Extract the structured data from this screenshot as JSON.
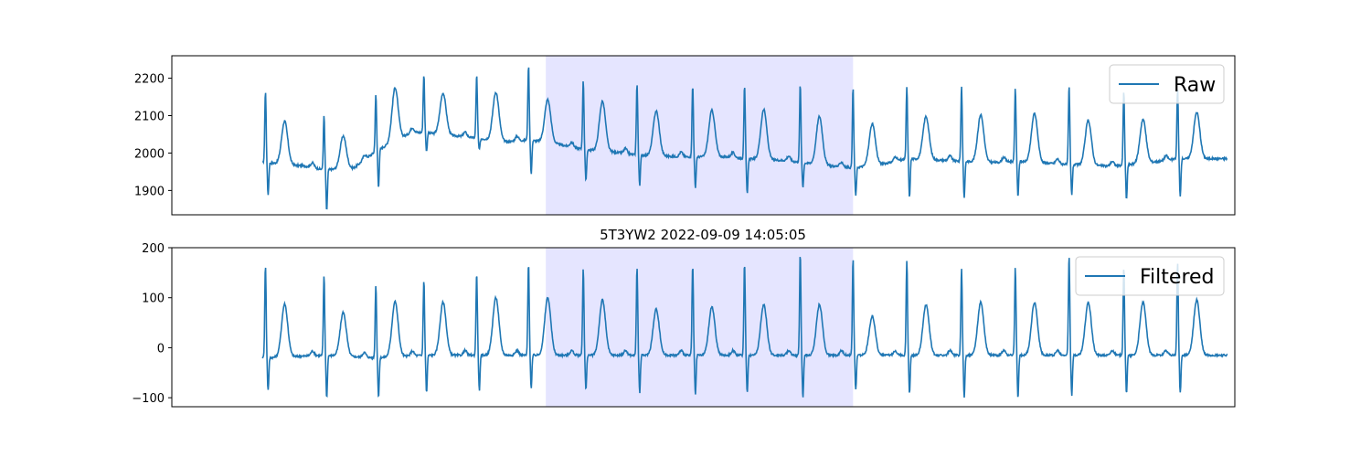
{
  "figure": {
    "title": "5T3YW2 2022-09-09 14:05:05"
  },
  "colors": {
    "line": "#1f77b4",
    "highlight": "#e5e5ff",
    "axes": "#000000"
  },
  "chart_data": [
    {
      "type": "line",
      "name": "raw-panel",
      "legend": "Raw",
      "legend_position": "upper-right",
      "grid": false,
      "xlim": [
        0,
        10
      ],
      "ylim": [
        1835,
        2260
      ],
      "yticks": [
        1900,
        2000,
        2100,
        2200
      ],
      "ytick_labels": [
        "1900",
        "2000",
        "2100",
        "2200"
      ],
      "highlight_x": [
        3.4,
        6.6
      ],
      "series": [
        {
          "name": "Raw",
          "peaks": [
            {
              "x": 0.48,
              "r": 2165,
              "s": 1890,
              "t": 2100
            },
            {
              "x": 1.09,
              "r": 2100,
              "s": 1845,
              "t": 2050
            },
            {
              "x": 1.63,
              "r": 2155,
              "s": 1905,
              "t": 2160
            },
            {
              "x": 2.13,
              "r": 2210,
              "s": 2005,
              "t": 2175
            },
            {
              "x": 2.68,
              "r": 2210,
              "s": 2010,
              "t": 2180
            },
            {
              "x": 3.22,
              "r": 2235,
              "s": 1945,
              "t": 2160
            },
            {
              "x": 3.79,
              "r": 2195,
              "s": 1925,
              "t": 2155
            },
            {
              "x": 4.35,
              "r": 2185,
              "s": 1915,
              "t": 2125
            },
            {
              "x": 4.93,
              "r": 2180,
              "s": 1905,
              "t": 2125
            },
            {
              "x": 5.47,
              "r": 2180,
              "s": 1890,
              "t": 2130
            },
            {
              "x": 6.05,
              "r": 2185,
              "s": 1910,
              "t": 2115
            },
            {
              "x": 6.6,
              "r": 2175,
              "s": 1885,
              "t": 2080
            },
            {
              "x": 7.16,
              "r": 2175,
              "s": 1880,
              "t": 2110
            },
            {
              "x": 7.73,
              "r": 2180,
              "s": 1880,
              "t": 2115
            },
            {
              "x": 8.29,
              "r": 2175,
              "s": 1885,
              "t": 2120
            },
            {
              "x": 8.85,
              "r": 2180,
              "s": 1890,
              "t": 2100
            },
            {
              "x": 9.42,
              "r": 2165,
              "s": 1875,
              "t": 2095
            },
            {
              "x": 9.98,
              "r": 2170,
              "s": 1885,
              "t": 2120
            }
          ],
          "baseline": [
            [
              0.48,
              1975
            ],
            [
              0.9,
              1965
            ],
            [
              1.09,
              1955
            ],
            [
              1.4,
              1960
            ],
            [
              1.63,
              2005
            ],
            [
              2.0,
              2055
            ],
            [
              2.13,
              2055
            ],
            [
              2.5,
              2045
            ],
            [
              2.68,
              2040
            ],
            [
              3.0,
              2030
            ],
            [
              3.22,
              2035
            ],
            [
              3.5,
              2025
            ],
            [
              3.79,
              2010
            ],
            [
              4.2,
              2000
            ],
            [
              4.35,
              1995
            ],
            [
              4.8,
              1990
            ],
            [
              4.93,
              1990
            ],
            [
              5.3,
              1990
            ],
            [
              5.47,
              1985
            ],
            [
              5.9,
              1980
            ],
            [
              6.05,
              1975
            ],
            [
              6.4,
              1965
            ],
            [
              6.6,
              1960
            ],
            [
              7.0,
              1975
            ],
            [
              7.16,
              1985
            ],
            [
              7.6,
              1980
            ],
            [
              7.73,
              1978
            ],
            [
              8.1,
              1975
            ],
            [
              8.29,
              1978
            ],
            [
              8.7,
              1972
            ],
            [
              8.85,
              1970
            ],
            [
              9.3,
              1965
            ],
            [
              9.42,
              1968
            ],
            [
              9.8,
              1978
            ],
            [
              9.98,
              1985
            ],
            [
              10.5,
              1985
            ]
          ],
          "x_end": 10.5
        }
      ]
    },
    {
      "type": "line",
      "name": "filtered-panel",
      "legend": "Filtered",
      "legend_position": "upper-right",
      "grid": false,
      "xlim": [
        0,
        10
      ],
      "ylim": [
        -118,
        200
      ],
      "yticks": [
        -100,
        0,
        100,
        200
      ],
      "ytick_labels": [
        "−100",
        "0",
        "100",
        "200"
      ],
      "highlight_x": [
        3.4,
        6.6
      ],
      "series": [
        {
          "name": "Filtered",
          "peaks": [
            {
              "x": 0.48,
              "r": 165,
              "s": -85,
              "t": 95
            },
            {
              "x": 1.09,
              "r": 145,
              "s": -100,
              "t": 80
            },
            {
              "x": 1.63,
              "r": 125,
              "s": -100,
              "t": 100
            },
            {
              "x": 2.13,
              "r": 135,
              "s": -90,
              "t": 100
            },
            {
              "x": 2.68,
              "r": 150,
              "s": -85,
              "t": 110
            },
            {
              "x": 3.22,
              "r": 170,
              "s": -80,
              "t": 110
            },
            {
              "x": 3.79,
              "r": 160,
              "s": -85,
              "t": 105
            },
            {
              "x": 4.35,
              "r": 160,
              "s": -90,
              "t": 85
            },
            {
              "x": 4.93,
              "r": 165,
              "s": -95,
              "t": 90
            },
            {
              "x": 5.47,
              "r": 170,
              "s": -90,
              "t": 95
            },
            {
              "x": 6.05,
              "r": 188,
              "s": -100,
              "t": 95
            },
            {
              "x": 6.6,
              "r": 180,
              "s": -85,
              "t": 70
            },
            {
              "x": 7.16,
              "r": 175,
              "s": -90,
              "t": 95
            },
            {
              "x": 7.73,
              "r": 160,
              "s": -100,
              "t": 100
            },
            {
              "x": 8.29,
              "r": 160,
              "s": -100,
              "t": 100
            },
            {
              "x": 8.85,
              "r": 185,
              "s": -95,
              "t": 100
            },
            {
              "x": 9.42,
              "r": 160,
              "s": -90,
              "t": 100
            },
            {
              "x": 9.98,
              "r": 170,
              "s": -90,
              "t": 105
            }
          ],
          "baseline": [
            [
              0.48,
              -20
            ],
            [
              1.09,
              -15
            ],
            [
              1.63,
              -20
            ],
            [
              2.13,
              -15
            ],
            [
              2.68,
              -15
            ],
            [
              3.22,
              -15
            ],
            [
              3.79,
              -15
            ],
            [
              4.35,
              -15
            ],
            [
              4.93,
              -15
            ],
            [
              5.47,
              -15
            ],
            [
              6.05,
              -15
            ],
            [
              6.6,
              -15
            ],
            [
              7.16,
              -15
            ],
            [
              7.73,
              -15
            ],
            [
              8.29,
              -15
            ],
            [
              8.85,
              -15
            ],
            [
              9.42,
              -15
            ],
            [
              9.98,
              -15
            ],
            [
              10.5,
              -15
            ]
          ],
          "x_end": 10.5
        }
      ]
    }
  ]
}
